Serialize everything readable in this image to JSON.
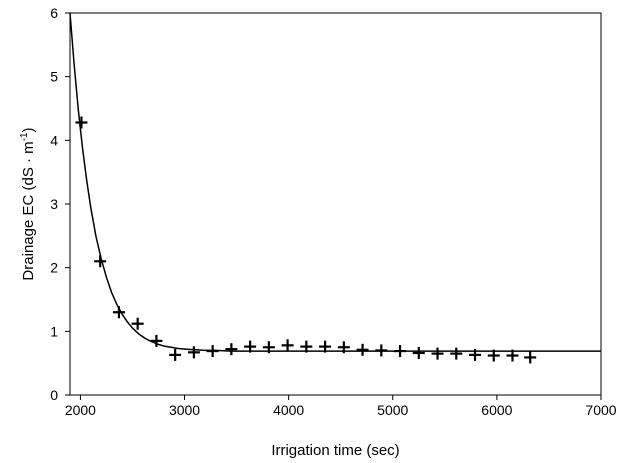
{
  "chart_data": {
    "type": "scatter",
    "title": "",
    "xlabel": "Irrigation time (sec)",
    "ylabel": {
      "main": "Drainage EC (dS · m",
      "sup": "-1",
      "close": ")"
    },
    "xlim": [
      1900,
      7000
    ],
    "ylim": [
      0,
      6
    ],
    "xticks": [
      2000,
      3000,
      4000,
      5000,
      6000,
      7000
    ],
    "yticks": [
      0,
      1,
      2,
      3,
      4,
      5,
      6
    ],
    "grid": false,
    "legend": "none",
    "marker": "plus",
    "color": "#000000",
    "points": [
      {
        "x": 2010,
        "y": 4.28
      },
      {
        "x": 2190,
        "y": 2.1
      },
      {
        "x": 2370,
        "y": 1.3
      },
      {
        "x": 2550,
        "y": 1.12
      },
      {
        "x": 2730,
        "y": 0.85
      },
      {
        "x": 2910,
        "y": 0.63
      },
      {
        "x": 3090,
        "y": 0.67
      },
      {
        "x": 3270,
        "y": 0.69
      },
      {
        "x": 3450,
        "y": 0.72
      },
      {
        "x": 3630,
        "y": 0.76
      },
      {
        "x": 3810,
        "y": 0.75
      },
      {
        "x": 3990,
        "y": 0.78
      },
      {
        "x": 4170,
        "y": 0.76
      },
      {
        "x": 4350,
        "y": 0.76
      },
      {
        "x": 4530,
        "y": 0.75
      },
      {
        "x": 4710,
        "y": 0.71
      },
      {
        "x": 4890,
        "y": 0.7
      },
      {
        "x": 5070,
        "y": 0.69
      },
      {
        "x": 5250,
        "y": 0.66
      },
      {
        "x": 5430,
        "y": 0.65
      },
      {
        "x": 5610,
        "y": 0.65
      },
      {
        "x": 5790,
        "y": 0.63
      },
      {
        "x": 5970,
        "y": 0.62
      },
      {
        "x": 6150,
        "y": 0.62
      },
      {
        "x": 6320,
        "y": 0.59
      }
    ],
    "fit_curve": {
      "type": "exponential decay",
      "x": [
        1900,
        1940,
        1980,
        2020,
        2060,
        2100,
        2150,
        2200,
        2250,
        2300,
        2350,
        2400,
        2450,
        2500,
        2560,
        2620,
        2680,
        2740,
        2800,
        2870,
        2940,
        3020,
        3100,
        3200,
        3300,
        3450,
        3600,
        3800,
        4000,
        4400,
        4800,
        5400,
        6000,
        6600,
        7000
      ],
      "y": [
        6.0,
        5.18,
        4.48,
        3.88,
        3.37,
        2.94,
        2.49,
        2.14,
        1.85,
        1.61,
        1.42,
        1.27,
        1.15,
        1.05,
        0.96,
        0.89,
        0.84,
        0.8,
        0.77,
        0.75,
        0.73,
        0.72,
        0.71,
        0.7,
        0.7,
        0.69,
        0.69,
        0.69,
        0.69,
        0.69,
        0.69,
        0.69,
        0.69,
        0.69,
        0.69
      ]
    }
  }
}
